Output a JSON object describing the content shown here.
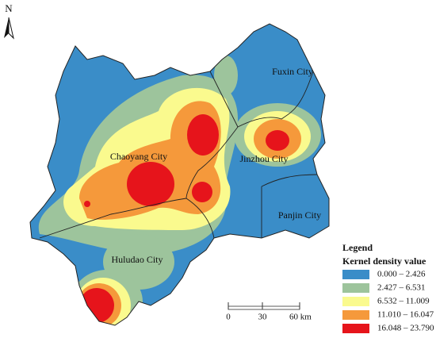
{
  "north": "N",
  "cities": [
    "Fuxin City",
    "Chaoyang City",
    "Jinzhou City",
    "Panjin City",
    "Huludao City"
  ],
  "legend": {
    "title": "Legend",
    "subtitle": "Kernel density value",
    "items": [
      {
        "label": "0.000 – 2.426",
        "color": "#3a8dc8"
      },
      {
        "label": "2.427 – 6.531",
        "color": "#9dc49c"
      },
      {
        "label": "6.532 – 11.009",
        "color": "#fafa8e"
      },
      {
        "label": "11.010 – 16.047",
        "color": "#f5993b"
      },
      {
        "label": "16.048 – 23.790",
        "color": "#e6141b"
      }
    ]
  },
  "scale": [
    "0",
    "30",
    "60 km"
  ]
}
